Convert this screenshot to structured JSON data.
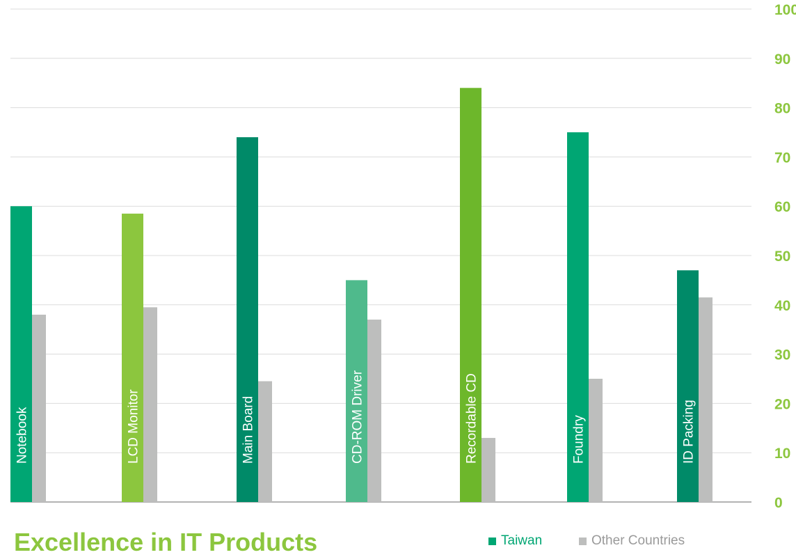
{
  "chart_data": {
    "type": "bar",
    "title": "Excellence in IT Products",
    "categories": [
      "Notebook",
      "LCD Monitor",
      "Main Board",
      "CD-ROM Driver",
      "Recordable CD",
      "Foundry",
      "ID Packing"
    ],
    "series": [
      {
        "name": "Taiwan",
        "values": [
          60,
          58.5,
          74,
          45,
          84,
          75,
          47
        ]
      },
      {
        "name": "Other Countries",
        "values": [
          38,
          39.5,
          24.5,
          37,
          13,
          25,
          41.5
        ]
      }
    ],
    "ylim": [
      0,
      100
    ],
    "yticks": [
      0,
      10,
      20,
      30,
      40,
      50,
      60,
      70,
      80,
      90,
      100
    ],
    "grid": true,
    "legend_position": "bottom-right",
    "colors": {
      "taiwan_bars": [
        "#00a673",
        "#8cc63e",
        "#008a68",
        "#4fba8c",
        "#6db72b",
        "#00a673",
        "#008a68"
      ],
      "other": "#bdbebd",
      "axis_text": "#8cc63e",
      "grid": "#dcdcdc"
    }
  }
}
